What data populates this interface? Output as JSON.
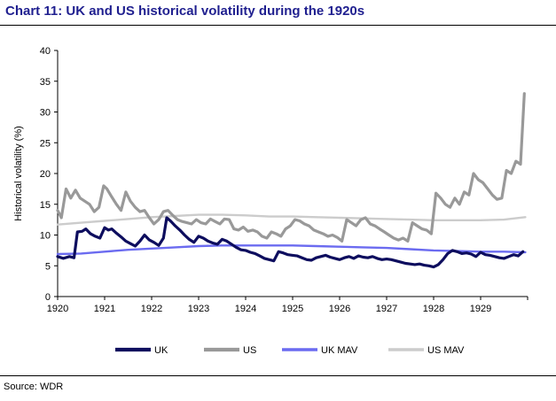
{
  "title": "Chart 11: UK and US historical volatility during the 1920s",
  "source": "Source: WDR",
  "chart_data": {
    "type": "line",
    "xlim": [
      1920,
      1930
    ],
    "ylim": [
      0,
      40
    ],
    "ylabel": "Historical volatility (%)",
    "xlabel": "",
    "xticks": [
      "1920",
      "1921",
      "1922",
      "1923",
      "1924",
      "1925",
      "1926",
      "1927",
      "1928",
      "1929"
    ],
    "yticks": [
      "0",
      "5",
      "10",
      "15",
      "20",
      "25",
      "30",
      "35",
      "40"
    ],
    "grid": false,
    "legend_position": "bottom",
    "series": [
      {
        "name": "UK",
        "color": "#0d0d5e",
        "x": [
          1920.0,
          1920.12,
          1920.25,
          1920.35,
          1920.42,
          1920.52,
          1920.6,
          1920.7,
          1920.8,
          1920.9,
          1921.0,
          1921.08,
          1921.15,
          1921.25,
          1921.35,
          1921.45,
          1921.55,
          1921.65,
          1921.75,
          1921.85,
          1921.95,
          1922.05,
          1922.15,
          1922.25,
          1922.32,
          1922.4,
          1922.5,
          1922.6,
          1922.7,
          1922.8,
          1922.9,
          1923.0,
          1923.1,
          1923.2,
          1923.3,
          1923.4,
          1923.5,
          1923.6,
          1923.7,
          1923.8,
          1923.9,
          1924.0,
          1924.1,
          1924.2,
          1924.3,
          1924.4,
          1924.5,
          1924.6,
          1924.7,
          1924.8,
          1924.9,
          1925.0,
          1925.1,
          1925.2,
          1925.3,
          1925.4,
          1925.5,
          1925.6,
          1925.7,
          1925.8,
          1925.9,
          1926.0,
          1926.1,
          1926.2,
          1926.3,
          1926.4,
          1926.5,
          1926.6,
          1926.7,
          1926.8,
          1926.9,
          1927.0,
          1927.1,
          1927.2,
          1927.3,
          1927.4,
          1927.5,
          1927.6,
          1927.7,
          1927.8,
          1927.9,
          1928.0,
          1928.1,
          1928.2,
          1928.3,
          1928.4,
          1928.5,
          1928.6,
          1928.7,
          1928.8,
          1928.9,
          1929.0,
          1929.1,
          1929.2,
          1929.3,
          1929.4,
          1929.5,
          1929.6,
          1929.7,
          1929.8,
          1929.9
        ],
        "values": [
          6.5,
          6.2,
          6.5,
          6.3,
          10.5,
          10.6,
          11.0,
          10.2,
          9.8,
          9.5,
          11.2,
          10.8,
          11.0,
          10.3,
          9.7,
          9.0,
          8.6,
          8.2,
          9.0,
          10.0,
          9.2,
          8.8,
          8.3,
          9.5,
          12.8,
          12.3,
          11.5,
          10.8,
          10.0,
          9.3,
          8.8,
          9.8,
          9.5,
          9.0,
          8.7,
          8.5,
          9.3,
          9.0,
          8.5,
          8.0,
          7.6,
          7.5,
          7.2,
          7.0,
          6.6,
          6.2,
          6.0,
          5.8,
          7.3,
          7.1,
          6.8,
          6.7,
          6.6,
          6.3,
          6.0,
          5.9,
          6.3,
          6.5,
          6.7,
          6.4,
          6.2,
          6.0,
          6.3,
          6.5,
          6.2,
          6.6,
          6.4,
          6.3,
          6.5,
          6.2,
          6.0,
          6.1,
          6.0,
          5.8,
          5.6,
          5.4,
          5.3,
          5.2,
          5.3,
          5.1,
          5.0,
          4.8,
          5.2,
          6.0,
          7.0,
          7.5,
          7.3,
          7.0,
          7.1,
          6.9,
          6.5,
          7.2,
          6.8,
          6.7,
          6.5,
          6.3,
          6.2,
          6.5,
          6.8,
          6.6,
          7.3
        ]
      },
      {
        "name": "US",
        "color": "#999999",
        "x": [
          1920.0,
          1920.08,
          1920.18,
          1920.28,
          1920.38,
          1920.48,
          1920.58,
          1920.68,
          1920.78,
          1920.88,
          1920.98,
          1921.05,
          1921.15,
          1921.25,
          1921.35,
          1921.45,
          1921.55,
          1921.65,
          1921.75,
          1921.85,
          1921.95,
          1922.05,
          1922.15,
          1922.25,
          1922.35,
          1922.45,
          1922.55,
          1922.65,
          1922.75,
          1922.85,
          1922.95,
          1923.05,
          1923.15,
          1923.25,
          1923.35,
          1923.45,
          1923.55,
          1923.65,
          1923.75,
          1923.85,
          1923.95,
          1924.05,
          1924.15,
          1924.25,
          1924.35,
          1924.45,
          1924.55,
          1924.65,
          1924.75,
          1924.85,
          1924.95,
          1925.05,
          1925.15,
          1925.25,
          1925.35,
          1925.45,
          1925.55,
          1925.65,
          1925.75,
          1925.85,
          1925.95,
          1926.05,
          1926.15,
          1926.25,
          1926.35,
          1926.45,
          1926.55,
          1926.65,
          1926.75,
          1926.85,
          1926.95,
          1927.05,
          1927.15,
          1927.25,
          1927.35,
          1927.45,
          1927.55,
          1927.65,
          1927.75,
          1927.85,
          1927.95,
          1928.05,
          1928.15,
          1928.25,
          1928.35,
          1928.45,
          1928.55,
          1928.65,
          1928.75,
          1928.85,
          1928.95,
          1929.05,
          1929.15,
          1929.25,
          1929.35,
          1929.45,
          1929.55,
          1929.65,
          1929.75,
          1929.85,
          1929.93
        ],
        "values": [
          14.0,
          12.8,
          17.5,
          16.0,
          17.3,
          16.0,
          15.5,
          15.0,
          13.8,
          14.5,
          18.0,
          17.5,
          16.2,
          15.0,
          14.0,
          17.0,
          15.5,
          14.5,
          13.8,
          14.0,
          12.8,
          11.8,
          12.5,
          13.8,
          14.0,
          13.2,
          12.5,
          12.2,
          12.0,
          11.8,
          12.5,
          12.0,
          11.8,
          12.6,
          12.2,
          11.8,
          12.6,
          12.5,
          11.0,
          10.8,
          11.3,
          10.6,
          10.8,
          10.5,
          9.8,
          9.5,
          10.5,
          10.2,
          9.8,
          11.0,
          11.5,
          12.5,
          12.3,
          11.8,
          11.5,
          10.8,
          10.5,
          10.2,
          9.8,
          10.0,
          9.6,
          9.0,
          12.5,
          12.0,
          11.5,
          12.5,
          12.8,
          11.8,
          11.5,
          11.0,
          10.5,
          10.0,
          9.5,
          9.2,
          9.5,
          9.0,
          12.0,
          11.5,
          11.0,
          10.8,
          10.2,
          16.8,
          16.0,
          15.0,
          14.5,
          16.0,
          15.0,
          17.0,
          16.5,
          20.0,
          19.0,
          18.5,
          17.5,
          16.5,
          15.8,
          16.0,
          20.5,
          20.0,
          22.0,
          21.5,
          33.0
        ]
      },
      {
        "name": "UK MAV",
        "color": "#6b6bf0",
        "x": [
          1920.0,
          1920.5,
          1921.0,
          1921.5,
          1922.0,
          1922.5,
          1923.0,
          1923.5,
          1924.0,
          1924.5,
          1925.0,
          1925.5,
          1926.0,
          1926.5,
          1927.0,
          1927.5,
          1928.0,
          1928.5,
          1929.0,
          1929.5,
          1929.95
        ],
        "values": [
          6.9,
          7.0,
          7.3,
          7.6,
          7.8,
          8.0,
          8.2,
          8.3,
          8.3,
          8.3,
          8.3,
          8.2,
          8.1,
          8.0,
          7.9,
          7.7,
          7.5,
          7.4,
          7.3,
          7.3,
          7.2
        ]
      },
      {
        "name": "US MAV",
        "color": "#cccccc",
        "x": [
          1920.0,
          1920.5,
          1921.0,
          1921.5,
          1922.0,
          1922.5,
          1923.0,
          1923.5,
          1924.0,
          1924.5,
          1925.0,
          1925.5,
          1926.0,
          1926.5,
          1927.0,
          1927.5,
          1928.0,
          1928.5,
          1929.0,
          1929.5,
          1929.95
        ],
        "values": [
          11.7,
          12.0,
          12.3,
          12.6,
          12.9,
          13.1,
          13.3,
          13.3,
          13.2,
          13.0,
          13.0,
          12.9,
          12.8,
          12.7,
          12.6,
          12.5,
          12.4,
          12.4,
          12.4,
          12.5,
          12.9
        ]
      }
    ]
  }
}
